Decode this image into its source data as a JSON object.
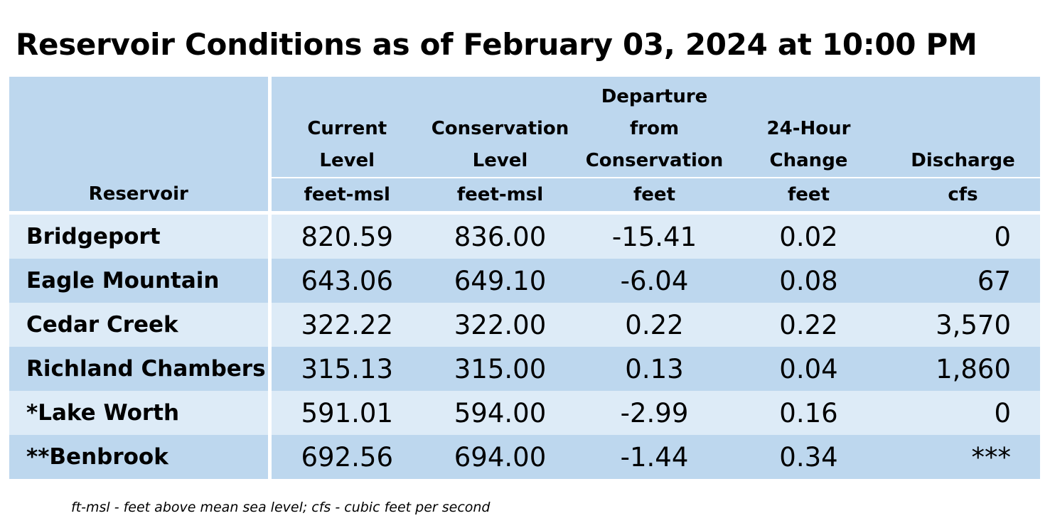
{
  "title": "Reservoir Conditions as of February 03, 2024 at 10:00 PM",
  "table": {
    "headers": [
      {
        "label_lines": [
          "Reservoir"
        ],
        "unit": ""
      },
      {
        "label_lines": [
          "Current",
          "Level"
        ],
        "unit": "feet-msl"
      },
      {
        "label_lines": [
          "Conservation",
          "Level"
        ],
        "unit": "feet-msl"
      },
      {
        "label_lines": [
          "Departure",
          "from",
          "Conservation"
        ],
        "unit": "feet"
      },
      {
        "label_lines": [
          "24-Hour",
          "Change"
        ],
        "unit": "feet"
      },
      {
        "label_lines": [
          "Discharge"
        ],
        "unit": "cfs"
      }
    ],
    "rows": [
      {
        "name": "Bridgeport",
        "current": "820.59",
        "conservation": "836.00",
        "departure": "-15.41",
        "change": "0.02",
        "discharge": "0"
      },
      {
        "name": "Eagle Mountain",
        "current": "643.06",
        "conservation": "649.10",
        "departure": "-6.04",
        "change": "0.08",
        "discharge": "67"
      },
      {
        "name": "Cedar Creek",
        "current": "322.22",
        "conservation": "322.00",
        "departure": "0.22",
        "change": "0.22",
        "discharge": "3,570"
      },
      {
        "name": "Richland Chambers",
        "current": "315.13",
        "conservation": "315.00",
        "departure": "0.13",
        "change": "0.04",
        "discharge": "1,860"
      },
      {
        "name": "*Lake Worth",
        "current": "591.01",
        "conservation": "594.00",
        "departure": "-2.99",
        "change": "0.16",
        "discharge": "0"
      },
      {
        "name": "**Benbrook",
        "current": "692.56",
        "conservation": "694.00",
        "departure": "-1.44",
        "change": "0.34",
        "discharge": "***"
      }
    ]
  },
  "footnote": "ft-msl - feet above mean sea level; cfs - cubic feet per second",
  "colors": {
    "header_bg": "#bdd7ee",
    "row_light": "#ddebf7",
    "row_dark": "#bdd7ee"
  }
}
